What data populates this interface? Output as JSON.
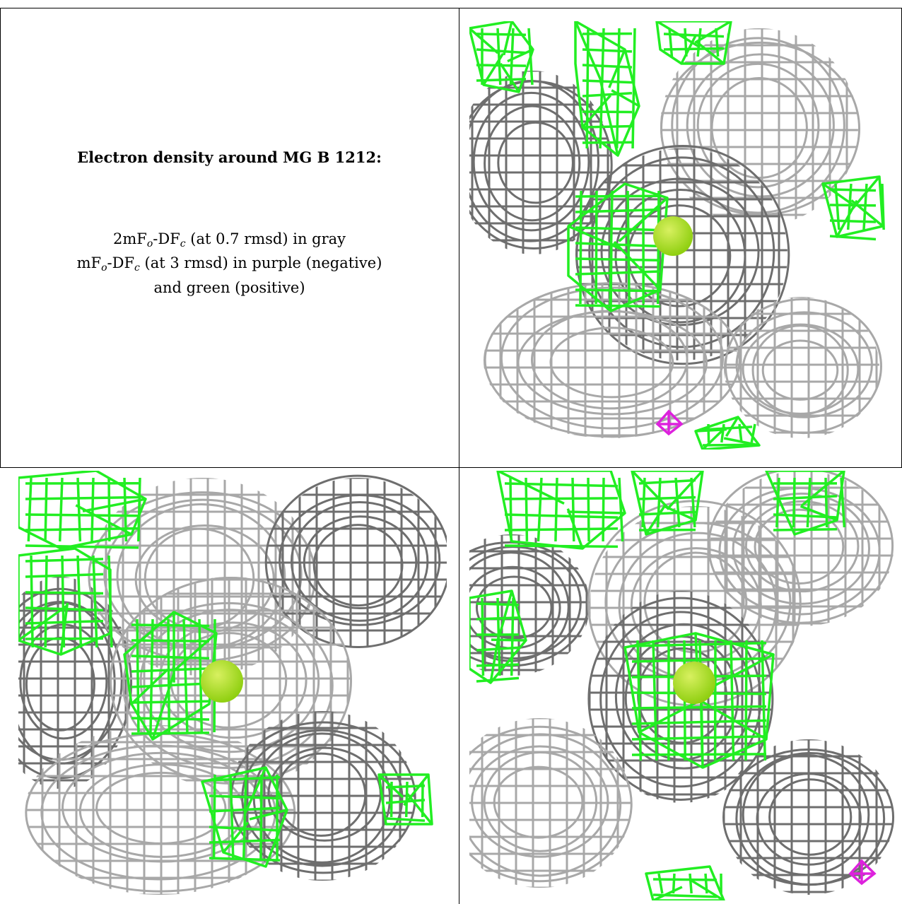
{
  "caption": {
    "title": "Electron density around MG B 1212:",
    "line1_prefix": "2mF",
    "line1_sub1": "o",
    "line1_mid": "-DF",
    "line1_sub2": "c",
    "line1_suffix": " (at 0.7 rmsd) in gray",
    "line2_prefix": "mF",
    "line2_sub1": "o",
    "line2_mid": "-DF",
    "line2_sub2": "c",
    "line2_suffix": " (at 3 rmsd) in purple (negative)",
    "line3": "and green (positive)"
  },
  "colors": {
    "density_2fofc": "#a8a8a8",
    "density_2fofc_dark": "#6e6e6e",
    "density_positive": "#22ee22",
    "density_negative": "#dd22dd",
    "mg_atom": "#8fcf10"
  },
  "icons": {
    "atom": "mg-ion-sphere",
    "mesh": "electron-density-mesh"
  }
}
